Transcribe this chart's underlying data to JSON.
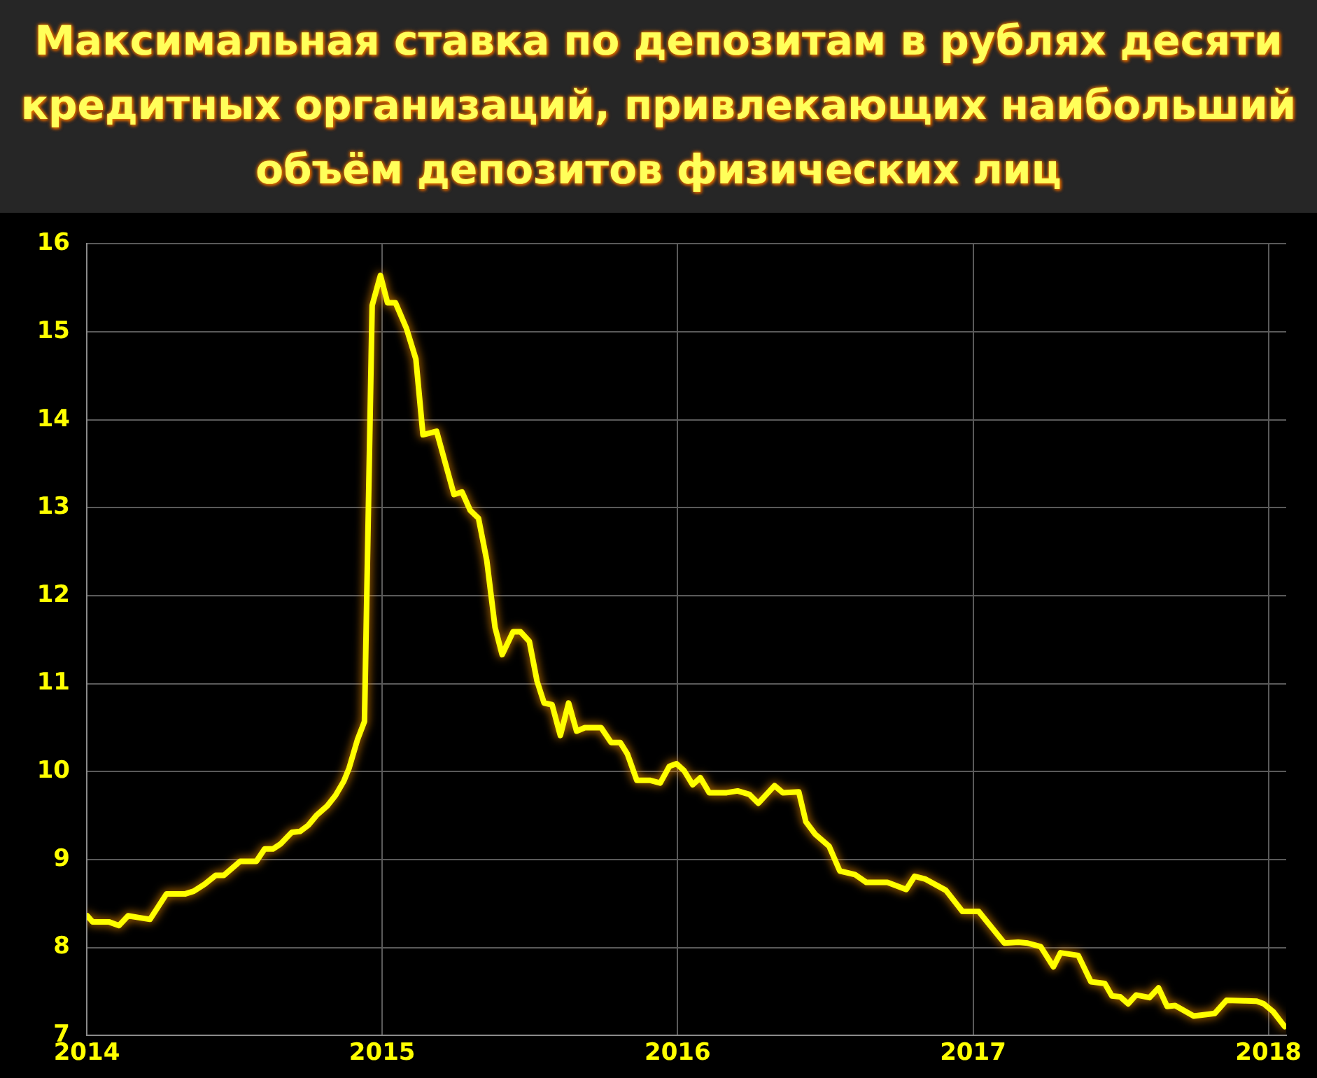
{
  "chart_data": {
    "type": "line",
    "title": "Максимальная ставка по депозитам в рублях десяти кредитных организаций, привлекающих наибольший объём депозитов физических лиц",
    "xlim": [
      2014,
      2018.06
    ],
    "xticks": [
      2014,
      2015,
      2016,
      2017,
      2018
    ],
    "ylim": [
      7,
      16
    ],
    "yticks": [
      7,
      8,
      9,
      10,
      11,
      12,
      13,
      14,
      15,
      16
    ],
    "grid": true,
    "legend": false,
    "marker": "none",
    "line_style": "solid",
    "series": [
      {
        "color": "#ffff00",
        "x": [
          2014.002,
          2014.02,
          2014.076,
          2014.109,
          2014.14,
          2014.177,
          2014.214,
          2014.27,
          2014.334,
          2014.362,
          2014.399,
          2014.436,
          2014.464,
          2014.519,
          2014.574,
          2014.602,
          2014.63,
          2014.657,
          2014.694,
          2014.722,
          2014.75,
          2014.777,
          2014.814,
          2014.842,
          2014.87,
          2014.888,
          2014.916,
          2014.94,
          2014.966,
          2014.994,
          2015.018,
          2015.045,
          2015.082,
          2015.114,
          2015.138,
          2015.184,
          2015.243,
          2015.27,
          2015.298,
          2015.326,
          2015.354,
          2015.382,
          2015.406,
          2015.443,
          2015.468,
          2015.498,
          2015.524,
          2015.548,
          2015.575,
          2015.603,
          2015.631,
          2015.658,
          2015.686,
          2015.741,
          2015.775,
          2015.806,
          2015.83,
          2015.862,
          2015.908,
          2015.941,
          2015.972,
          2015.996,
          2016.022,
          2016.051,
          2016.077,
          2016.107,
          2016.166,
          2016.203,
          2016.243,
          2016.273,
          2016.328,
          2016.356,
          2016.41,
          2016.434,
          2016.465,
          2016.513,
          2016.549,
          2016.6,
          2016.639,
          2016.71,
          2016.774,
          2016.802,
          2016.837,
          2016.908,
          2016.964,
          2017.019,
          2017.106,
          2017.153,
          2017.185,
          2017.229,
          2017.272,
          2017.296,
          2017.356,
          2017.399,
          2017.446,
          2017.47,
          2017.498,
          2017.525,
          2017.552,
          2017.597,
          2017.628,
          2017.657,
          2017.684,
          2017.747,
          2017.818,
          2017.858,
          2017.96,
          2017.984,
          2018.016,
          2018.055
        ],
        "values": [
          8.36,
          8.29,
          8.29,
          8.25,
          8.36,
          8.34,
          8.32,
          8.61,
          8.61,
          8.64,
          8.72,
          8.82,
          8.82,
          8.98,
          8.98,
          9.12,
          9.12,
          9.18,
          9.31,
          9.32,
          9.39,
          9.5,
          9.61,
          9.73,
          9.89,
          10.04,
          10.36,
          10.57,
          15.3,
          15.64,
          15.33,
          15.33,
          15.04,
          14.69,
          13.83,
          13.87,
          13.15,
          13.18,
          12.97,
          12.88,
          12.4,
          11.64,
          11.33,
          11.59,
          11.59,
          11.48,
          11.03,
          10.78,
          10.76,
          10.41,
          10.78,
          10.46,
          10.5,
          10.5,
          10.33,
          10.33,
          10.2,
          9.9,
          9.9,
          9.87,
          10.06,
          10.09,
          10.01,
          9.85,
          9.93,
          9.76,
          9.76,
          9.78,
          9.74,
          9.64,
          9.84,
          9.76,
          9.77,
          9.43,
          9.29,
          9.15,
          8.87,
          8.83,
          8.74,
          8.74,
          8.66,
          8.81,
          8.78,
          8.65,
          8.41,
          8.41,
          8.05,
          8.06,
          8.05,
          8.01,
          7.78,
          7.94,
          7.91,
          7.61,
          7.59,
          7.45,
          7.44,
          7.36,
          7.46,
          7.43,
          7.54,
          7.33,
          7.34,
          7.22,
          7.25,
          7.4,
          7.39,
          7.36,
          7.27,
          7.1
        ]
      }
    ]
  }
}
